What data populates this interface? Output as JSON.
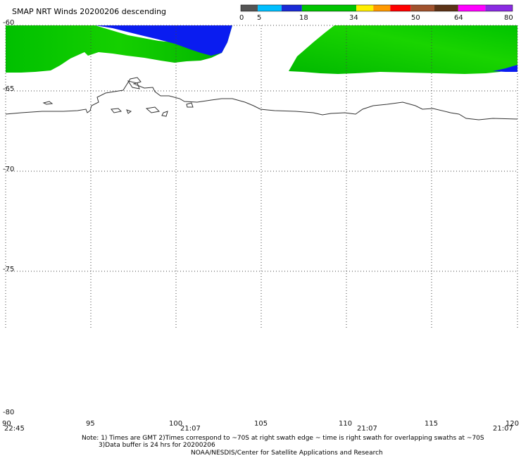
{
  "title": "SMAP NRT Winds  20200206 descending",
  "colorbar": {
    "tick_labels": [
      "0",
      "5",
      "18",
      "34",
      "50",
      "64",
      "80"
    ],
    "tick_values": [
      0,
      5,
      18,
      34,
      50,
      64,
      80
    ],
    "segments": [
      {
        "from": 0,
        "to": 5,
        "color": "#555555"
      },
      {
        "from": 5,
        "to": 12,
        "color": "#00bfff"
      },
      {
        "from": 12,
        "to": 18,
        "color": "#1a2bd6"
      },
      {
        "from": 18,
        "to": 34,
        "color": "#00c400"
      },
      {
        "from": 34,
        "to": 39,
        "color": "#ffee00"
      },
      {
        "from": 39,
        "to": 44,
        "color": "#ff9900"
      },
      {
        "from": 44,
        "to": 50,
        "color": "#ff0000"
      },
      {
        "from": 50,
        "to": 57,
        "color": "#a0522d"
      },
      {
        "from": 57,
        "to": 64,
        "color": "#5c3317"
      },
      {
        "from": 64,
        "to": 72,
        "color": "#ff00ff"
      },
      {
        "from": 72,
        "to": 80,
        "color": "#8a2be2"
      }
    ]
  },
  "axes": {
    "lat_labels": [
      "-60",
      "-65",
      "-70",
      "-75",
      "-80"
    ],
    "lon_labels": [
      "90",
      "95",
      "100",
      "105",
      "110",
      "115",
      "120"
    ],
    "lat_range": [
      -60,
      -80
    ],
    "lon_range": [
      90,
      120
    ],
    "grid": true
  },
  "swath_times": [
    "22:45",
    "21:07",
    "21:07",
    "21:07"
  ],
  "notes": {
    "line1": "Note: 1) Times are GMT 2)Times correspond to ~70S at right swath edge ~ time is right swath for overlapping swaths at ~70S",
    "line2": "3)Data buffer is 24 hrs for 20200206",
    "line3": "NOAA/NESDIS/Center for Satellite Applications and Research"
  }
}
